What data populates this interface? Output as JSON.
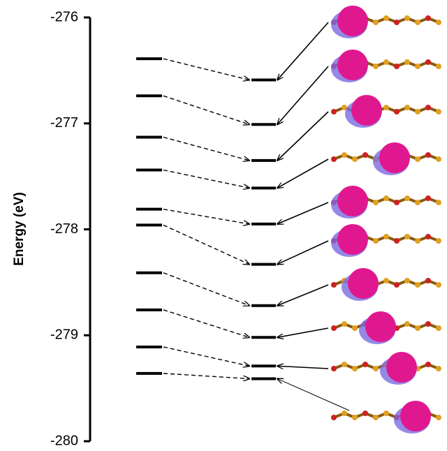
{
  "chart_data": {
    "type": "levels",
    "ylabel": "Energy (eV)",
    "ylim": [
      -280,
      -276
    ],
    "yticks": [
      -280,
      -279,
      -278,
      -277,
      -276
    ],
    "series": [
      {
        "color": "#000000",
        "values": [
          -276.39,
          -276.74,
          -277.13,
          -277.44,
          -277.81,
          -277.96,
          -278.41,
          -278.76,
          -279.11,
          -279.36
        ]
      },
      {
        "color": "#000000",
        "values": [
          -276.59,
          -277.01,
          -277.35,
          -277.61,
          -277.95,
          -278.33,
          -278.72,
          -279.02,
          -279.29,
          -279.41
        ]
      }
    ]
  }
}
